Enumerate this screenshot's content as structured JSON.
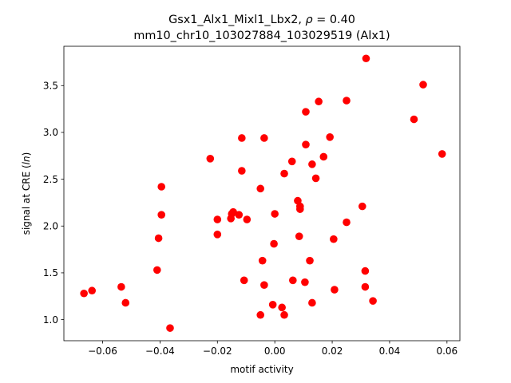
{
  "chart_data": {
    "type": "scatter",
    "title_line1": "Gsx1_Alx1_Mixl1_Lbx2, ",
    "title_rho_symbol": "ρ",
    "title_rho_value": " = 0.40",
    "title_line2": "mm10_chr10_103027884_103029519 (Alx1)",
    "xlabel": "motif activity",
    "ylabel_prefix": "signal at CRE (",
    "ylabel_ln": "ln",
    "ylabel_suffix": ")",
    "xlim": [
      -0.0735,
      0.0645
    ],
    "ylim": [
      0.775,
      3.92
    ],
    "xticks": [
      -0.06,
      -0.04,
      -0.02,
      0.0,
      0.02,
      0.04,
      0.06
    ],
    "xtick_labels": [
      "−0.06",
      "−0.04",
      "−0.02",
      "0.00",
      "0.02",
      "0.04",
      "0.06"
    ],
    "yticks": [
      1.0,
      1.5,
      2.0,
      2.5,
      3.0,
      3.5
    ],
    "ytick_labels": [
      "1.0",
      "1.5",
      "2.0",
      "2.5",
      "3.0",
      "3.5"
    ],
    "marker_color": "#ff0000",
    "points": [
      [
        -0.0665,
        1.28
      ],
      [
        -0.0637,
        1.31
      ],
      [
        -0.0535,
        1.35
      ],
      [
        -0.052,
        1.18
      ],
      [
        -0.041,
        1.53
      ],
      [
        -0.0405,
        1.87
      ],
      [
        -0.0395,
        2.42
      ],
      [
        -0.0395,
        2.12
      ],
      [
        -0.0365,
        0.91
      ],
      [
        -0.0225,
        2.72
      ],
      [
        -0.02,
        2.07
      ],
      [
        -0.02,
        1.91
      ],
      [
        -0.0153,
        2.08
      ],
      [
        -0.015,
        2.13
      ],
      [
        -0.0145,
        2.15
      ],
      [
        -0.0125,
        2.12
      ],
      [
        -0.0115,
        2.94
      ],
      [
        -0.0115,
        2.59
      ],
      [
        -0.0107,
        1.42
      ],
      [
        -0.0097,
        2.07
      ],
      [
        -0.005,
        2.4
      ],
      [
        -0.005,
        1.05
      ],
      [
        -0.0043,
        1.63
      ],
      [
        -0.0037,
        2.94
      ],
      [
        -0.0037,
        1.37
      ],
      [
        -0.0007,
        1.16
      ],
      [
        -0.0003,
        1.81
      ],
      [
        0.0,
        2.13
      ],
      [
        0.0025,
        1.13
      ],
      [
        0.0033,
        2.56
      ],
      [
        0.0033,
        1.05
      ],
      [
        0.006,
        2.69
      ],
      [
        0.0063,
        1.42
      ],
      [
        0.008,
        2.27
      ],
      [
        0.0085,
        1.89
      ],
      [
        0.0088,
        2.21
      ],
      [
        0.0088,
        2.18
      ],
      [
        0.0105,
        1.4
      ],
      [
        0.0108,
        2.87
      ],
      [
        0.0108,
        3.22
      ],
      [
        0.0122,
        1.63
      ],
      [
        0.013,
        2.66
      ],
      [
        0.013,
        1.18
      ],
      [
        0.0143,
        2.51
      ],
      [
        0.0153,
        3.33
      ],
      [
        0.017,
        2.74
      ],
      [
        0.0192,
        2.95
      ],
      [
        0.0205,
        1.86
      ],
      [
        0.0208,
        1.32
      ],
      [
        0.025,
        2.04
      ],
      [
        0.025,
        3.34
      ],
      [
        0.0305,
        2.21
      ],
      [
        0.0315,
        1.52
      ],
      [
        0.0315,
        1.35
      ],
      [
        0.0318,
        3.79
      ],
      [
        0.0342,
        1.2
      ],
      [
        0.0485,
        3.14
      ],
      [
        0.0517,
        3.51
      ],
      [
        0.0583,
        2.77
      ]
    ]
  }
}
